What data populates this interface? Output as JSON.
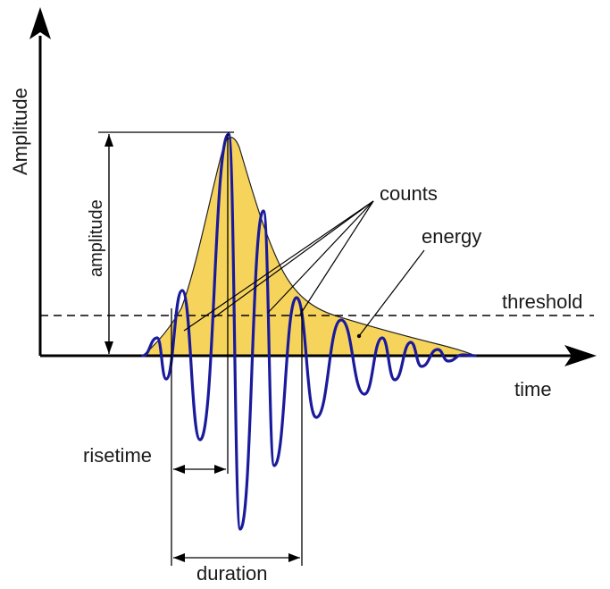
{
  "diagram": {
    "axis_y_label": "Amplitude",
    "axis_x_label": "time",
    "labels": {
      "amplitude": "amplitude",
      "counts": "counts",
      "energy": "energy",
      "threshold": "threshold",
      "risetime": "risetime",
      "duration": "duration"
    },
    "colors": {
      "envelope_fill": "#f6d45c",
      "waveform": "#1a1a9c",
      "axes": "#000000",
      "threshold_line": "#000000"
    }
  }
}
